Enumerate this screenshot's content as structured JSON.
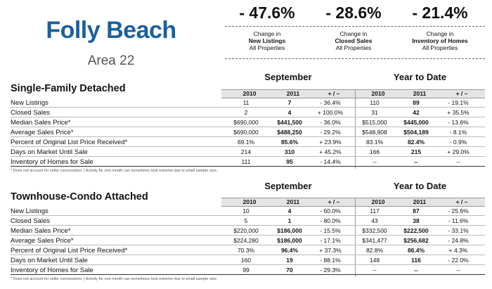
{
  "header": {
    "title": "Folly Beach",
    "area": "Area 22"
  },
  "stats": [
    {
      "pct": "- 47.6%",
      "l1": "Change in",
      "l2": "New Listings",
      "l3": "All Properties"
    },
    {
      "pct": "- 28.6%",
      "l1": "Change in",
      "l2": "Closed Sales",
      "l3": "All Properties"
    },
    {
      "pct": "- 21.4%",
      "l1": "Change in",
      "l2": "Inventory of Homes",
      "l3": "All Properties"
    }
  ],
  "sections": [
    {
      "title": "Single-Family Detached",
      "period1": "September",
      "period2": "Year to Date",
      "cols": [
        "2010",
        "2011",
        "+ / –",
        "2010",
        "2011",
        "+ / –"
      ],
      "rows": [
        {
          "label": "New Listings",
          "v": [
            "11",
            "7",
            "- 36.4%",
            "110",
            "89",
            "- 19.1%"
          ]
        },
        {
          "label": "Closed Sales",
          "v": [
            "2",
            "4",
            "+ 100.0%",
            "31",
            "42",
            "+ 35.5%"
          ]
        },
        {
          "label": "Median Sales Price*",
          "v": [
            "$690,000",
            "$441,500",
            "- 36.0%",
            "$515,000",
            "$445,000",
            "- 13.6%"
          ]
        },
        {
          "label": "Average Sales Price*",
          "v": [
            "$690,000",
            "$488,250",
            "- 29.2%",
            "$548,908",
            "$504,189",
            "- 8.1%"
          ]
        },
        {
          "label": "Percent of Original List Price Received*",
          "v": [
            "69.1%",
            "85.6%",
            "+ 23.9%",
            "83.1%",
            "82.4%",
            "- 0.9%"
          ]
        },
        {
          "label": "Days on Market Until Sale",
          "v": [
            "214",
            "310",
            "+ 45.2%",
            "166",
            "215",
            "+ 29.0%"
          ]
        },
        {
          "label": "Inventory of Homes for Sale",
          "v": [
            "111",
            "95",
            "- 14.4%",
            "--",
            "--",
            "--"
          ]
        }
      ],
      "footnote": "* Does not account for seller concessions.  |  Activity for one month can sometimes look extreme due to small sample size."
    },
    {
      "title": "Townhouse-Condo Attached",
      "period1": "September",
      "period2": "Year to Date",
      "cols": [
        "2010",
        "2011",
        "+ / –",
        "2010",
        "2011",
        "+ / –"
      ],
      "rows": [
        {
          "label": "New Listings",
          "v": [
            "10",
            "4",
            "- 60.0%",
            "117",
            "87",
            "- 25.6%"
          ]
        },
        {
          "label": "Closed Sales",
          "v": [
            "5",
            "1",
            "- 80.0%",
            "43",
            "38",
            "- 11.6%"
          ]
        },
        {
          "label": "Median Sales Price*",
          "v": [
            "$220,000",
            "$186,000",
            "- 15.5%",
            "$332,500",
            "$222,500",
            "- 33.1%"
          ]
        },
        {
          "label": "Average Sales Price*",
          "v": [
            "$224,280",
            "$186,000",
            "- 17.1%",
            "$341,477",
            "$256,682",
            "- 24.8%"
          ]
        },
        {
          "label": "Percent of Original List Price Received*",
          "v": [
            "70.3%",
            "96.4%",
            "+ 37.3%",
            "82.8%",
            "86.4%",
            "+ 4.3%"
          ]
        },
        {
          "label": "Days on Market Until Sale",
          "v": [
            "160",
            "19",
            "- 88.1%",
            "148",
            "116",
            "- 22.0%"
          ]
        },
        {
          "label": "Inventory of Homes for Sale",
          "v": [
            "99",
            "70",
            "- 29.3%",
            "--",
            "--",
            "--"
          ]
        }
      ],
      "footnote": "* Does not account for seller concessions.  |  Activity for one month can sometimes look extreme due to small sample size."
    }
  ]
}
